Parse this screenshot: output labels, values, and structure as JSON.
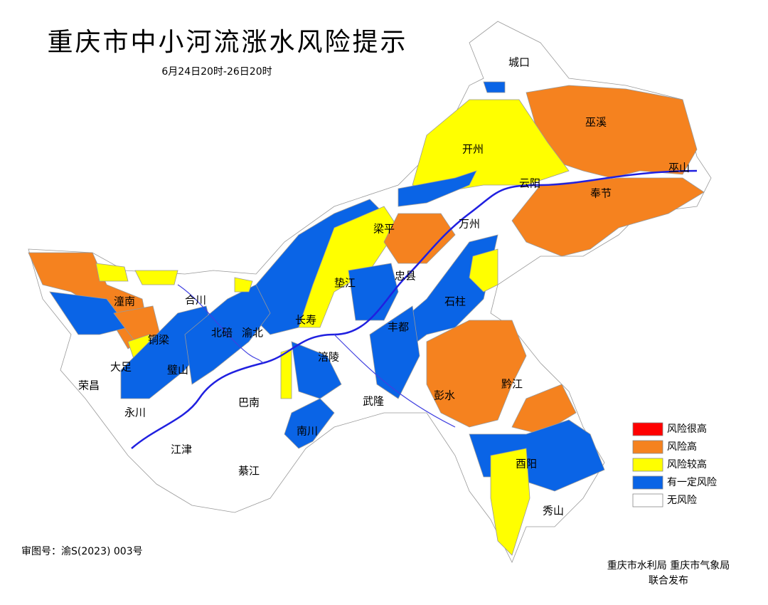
{
  "header": {
    "title": "重庆市中小河流涨水风险提示",
    "subtitle": "6月24日20时-26日20时"
  },
  "legend": [
    {
      "label": "风险很高",
      "color": "#ff0000"
    },
    {
      "label": "风险高",
      "color": "#f5821f"
    },
    {
      "label": "风险较高",
      "color": "#ffff00"
    },
    {
      "label": "有一定风险",
      "color": "#0a64e6"
    },
    {
      "label": "无风险",
      "color": "#ffffff"
    }
  ],
  "districts": [
    "城口",
    "巫溪",
    "开州",
    "云阳",
    "奉节",
    "巫山",
    "万州",
    "梁平",
    "垫江",
    "忠县",
    "石柱",
    "长寿",
    "丰都",
    "涪陵",
    "武隆",
    "彭水",
    "黔江",
    "酉阳",
    "秀山",
    "潼南",
    "合川",
    "铜梁",
    "大足",
    "荣昌",
    "永川",
    "璧山",
    "北碚",
    "渝北",
    "巴南",
    "江津",
    "綦江",
    "南川"
  ],
  "footer": {
    "approval": "审图号：渝S(2023) 003号",
    "issuer": "重庆市水利局 重庆市气象局",
    "issuer_note": "联合发布"
  }
}
